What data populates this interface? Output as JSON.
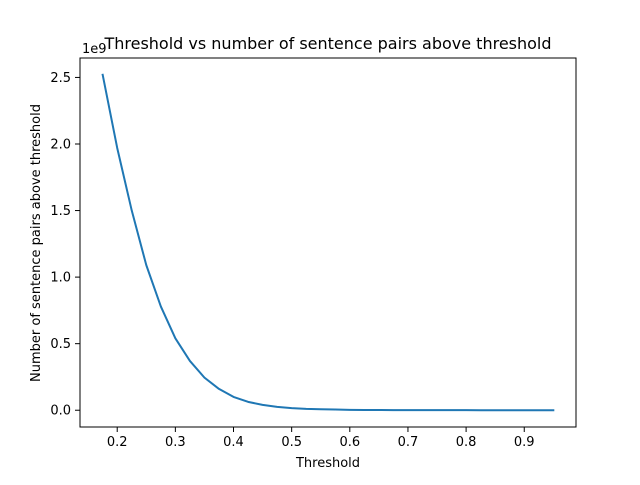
{
  "chart_data": {
    "type": "line",
    "title": "Threshold vs number of sentence pairs above threshold",
    "xlabel": "Threshold",
    "ylabel": "Number of sentence pairs above threshold",
    "y_offset_text": "1e9",
    "y_unit_multiplier": 1000000000,
    "xlim": [
      0.136,
      0.989
    ],
    "ylim": [
      -0.126,
      2.646
    ],
    "x_ticks": [
      0.2,
      0.3,
      0.4,
      0.5,
      0.6,
      0.7,
      0.8,
      0.9
    ],
    "x_tick_labels": [
      "0.2",
      "0.3",
      "0.4",
      "0.5",
      "0.6",
      "0.7",
      "0.8",
      "0.9"
    ],
    "y_ticks": [
      0.0,
      0.5,
      1.0,
      1.5,
      2.0,
      2.5
    ],
    "y_tick_labels": [
      "0.0",
      "0.5",
      "1.0",
      "1.5",
      "2.0",
      "2.5"
    ],
    "grid": false,
    "legend": "none",
    "series": [
      {
        "color": "#1f77b4",
        "x": [
          0.175,
          0.2,
          0.225,
          0.25,
          0.275,
          0.3,
          0.325,
          0.35,
          0.375,
          0.4,
          0.425,
          0.45,
          0.475,
          0.5,
          0.525,
          0.55,
          0.575,
          0.6,
          0.625,
          0.65,
          0.675,
          0.7,
          0.725,
          0.75,
          0.775,
          0.8,
          0.825,
          0.85,
          0.875,
          0.9,
          0.925,
          0.95
        ],
        "y": [
          2.52,
          1.97,
          1.5,
          1.09,
          0.78,
          0.54,
          0.37,
          0.245,
          0.16,
          0.1,
          0.063,
          0.04,
          0.025,
          0.016,
          0.01,
          0.007,
          0.005,
          0.003,
          0.002,
          0.0015,
          0.001,
          0.001,
          0.0008,
          0.0006,
          0.0005,
          0.0004,
          0.0003,
          0.0002,
          0.0002,
          0.0001,
          0.0001,
          0.0001
        ]
      }
    ]
  }
}
